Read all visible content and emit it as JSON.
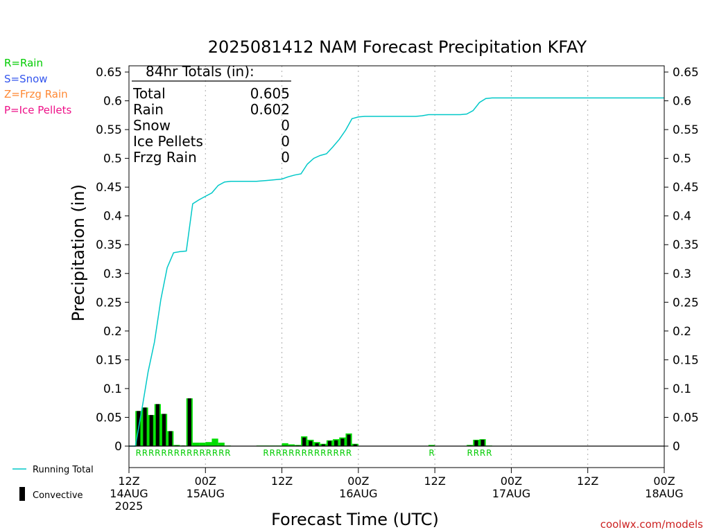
{
  "chart_data": {
    "type": "bar",
    "title": "2025081412 NAM Forecast Precipitation KFAY",
    "xlabel": "Forecast Time (UTC)",
    "ylabel": "Precipitation (in)",
    "ylim": [
      0,
      0.65
    ],
    "yticks": [
      "0",
      "0.05",
      "0.1",
      "0.15",
      "0.2",
      "0.25",
      "0.3",
      "0.35",
      "0.4",
      "0.45",
      "0.5",
      "0.55",
      "0.6",
      "0.65"
    ],
    "xlim_hours": [
      0,
      84
    ],
    "xticks": [
      {
        "hour": 0,
        "line1": "12Z",
        "line2": "14AUG",
        "line3": "2025"
      },
      {
        "hour": 12,
        "line1": "00Z",
        "line2": "15AUG",
        "line3": ""
      },
      {
        "hour": 24,
        "line1": "12Z",
        "line2": "",
        "line3": ""
      },
      {
        "hour": 36,
        "line1": "00Z",
        "line2": "16AUG",
        "line3": ""
      },
      {
        "hour": 48,
        "line1": "12Z",
        "line2": "",
        "line3": ""
      },
      {
        "hour": 60,
        "line1": "00Z",
        "line2": "17AUG",
        "line3": ""
      },
      {
        "hour": 72,
        "line1": "12Z",
        "line2": "",
        "line3": ""
      },
      {
        "hour": 84,
        "line1": "00Z",
        "line2": "18AUG",
        "line3": ""
      }
    ],
    "legend_left": [
      {
        "text": "R=Rain",
        "color": "#00cc00"
      },
      {
        "text": "S=Snow",
        "color": "#3355ee"
      },
      {
        "text": "Z=Frzg Rain",
        "color": "#ff8833"
      },
      {
        "text": "P=Ice Pellets",
        "color": "#ee1188"
      }
    ],
    "legend_bottom": {
      "running_total": "Running Total",
      "convective": "Convective"
    },
    "totals_box": {
      "heading": "84hr Totals (in):",
      "rows": [
        {
          "label": "Total",
          "value": "0.605"
        },
        {
          "label": "Rain",
          "value": "0.602"
        },
        {
          "label": "Snow",
          "value": "0"
        },
        {
          "label": "Ice Pellets",
          "value": "0"
        },
        {
          "label": "Frzg Rain",
          "value": "0"
        }
      ]
    },
    "credit": "coolwx.com/models",
    "colors": {
      "rain_bar": "#00dd00",
      "convective_bar": "#000000",
      "running_total": "#00c8c8",
      "grid": "#aaaaaa",
      "credit": "#cc2222"
    },
    "series": [
      {
        "name": "Running Total",
        "kind": "line",
        "x": [
          0,
          1,
          2,
          3,
          4,
          5,
          6,
          7,
          8,
          9,
          10,
          11,
          12,
          13,
          14,
          15,
          16,
          17,
          18,
          19,
          20,
          21,
          22,
          23,
          24,
          25,
          26,
          27,
          28,
          29,
          30,
          31,
          32,
          33,
          34,
          35,
          36,
          37,
          38,
          39,
          40,
          41,
          42,
          43,
          44,
          45,
          46,
          47,
          48,
          49,
          50,
          51,
          52,
          53,
          54,
          55,
          56,
          57,
          58,
          59,
          60,
          84
        ],
        "y": [
          0,
          0,
          0.062,
          0.129,
          0.181,
          0.255,
          0.31,
          0.336,
          0.338,
          0.339,
          0.421,
          0.428,
          0.434,
          0.44,
          0.453,
          0.459,
          0.46,
          0.46,
          0.46,
          0.46,
          0.46,
          0.461,
          0.462,
          0.463,
          0.464,
          0.468,
          0.471,
          0.473,
          0.49,
          0.5,
          0.505,
          0.508,
          0.52,
          0.533,
          0.549,
          0.569,
          0.572,
          0.573,
          0.573,
          0.573,
          0.573,
          0.573,
          0.573,
          0.573,
          0.573,
          0.573,
          0.574,
          0.576,
          0.576,
          0.576,
          0.576,
          0.576,
          0.576,
          0.577,
          0.583,
          0.597,
          0.604,
          0.605,
          0.605,
          0.605,
          0.605,
          0.605
        ]
      }
    ],
    "bars": [
      {
        "hour": 2,
        "total": 0.061,
        "convective": 0.061
      },
      {
        "hour": 3,
        "total": 0.067,
        "convective": 0.067
      },
      {
        "hour": 4,
        "total": 0.054,
        "convective": 0.054
      },
      {
        "hour": 5,
        "total": 0.073,
        "convective": 0.073
      },
      {
        "hour": 6,
        "total": 0.056,
        "convective": 0.056
      },
      {
        "hour": 7,
        "total": 0.026,
        "convective": 0.026
      },
      {
        "hour": 8,
        "total": 0.002,
        "convective": 0.001
      },
      {
        "hour": 9,
        "total": 0.001,
        "convective": 0.001
      },
      {
        "hour": 10,
        "total": 0.083,
        "convective": 0.083
      },
      {
        "hour": 11,
        "total": 0.006,
        "convective": 0
      },
      {
        "hour": 12,
        "total": 0.006,
        "convective": 0
      },
      {
        "hour": 13,
        "total": 0.007,
        "convective": 0
      },
      {
        "hour": 14,
        "total": 0.013,
        "convective": 0
      },
      {
        "hour": 15,
        "total": 0.006,
        "convective": 0
      },
      {
        "hour": 16,
        "total": 0.001,
        "convective": 0
      },
      {
        "hour": 17,
        "total": 0.0005,
        "convective": 0
      },
      {
        "hour": 18,
        "total": 0.0005,
        "convective": 0
      },
      {
        "hour": 19,
        "total": 0.0005,
        "convective": 0
      },
      {
        "hour": 20,
        "total": 0.0005,
        "convective": 0
      },
      {
        "hour": 21,
        "total": 0.001,
        "convective": 0
      },
      {
        "hour": 22,
        "total": 0.001,
        "convective": 0
      },
      {
        "hour": 23,
        "total": 0.001,
        "convective": 0
      },
      {
        "hour": 24,
        "total": 0.001,
        "convective": 0
      },
      {
        "hour": 25,
        "total": 0.005,
        "convective": 0
      },
      {
        "hour": 26,
        "total": 0.003,
        "convective": 0
      },
      {
        "hour": 27,
        "total": 0.002,
        "convective": 0.001
      },
      {
        "hour": 28,
        "total": 0.017,
        "convective": 0.015
      },
      {
        "hour": 29,
        "total": 0.011,
        "convective": 0.009
      },
      {
        "hour": 30,
        "total": 0.007,
        "convective": 0.005
      },
      {
        "hour": 31,
        "total": 0.004,
        "convective": 0.003
      },
      {
        "hour": 32,
        "total": 0.01,
        "convective": 0.009
      },
      {
        "hour": 33,
        "total": 0.012,
        "convective": 0.01
      },
      {
        "hour": 34,
        "total": 0.015,
        "convective": 0.013
      },
      {
        "hour": 35,
        "total": 0.022,
        "convective": 0.02
      },
      {
        "hour": 36,
        "total": 0.004,
        "convective": 0.003
      },
      {
        "hour": 48,
        "total": 0.002,
        "convective": 0
      },
      {
        "hour": 54,
        "total": 0.002,
        "convective": 0.001
      },
      {
        "hour": 55,
        "total": 0.011,
        "convective": 0.01
      },
      {
        "hour": 56,
        "total": 0.012,
        "convective": 0.011
      },
      {
        "hour": 57,
        "total": 0.001,
        "convective": 0
      }
    ],
    "precip_type_labels": [
      {
        "start_hour": 2,
        "text": "RRRRRRRRRRRRRRR"
      },
      {
        "start_hour": 22,
        "text": "RRRRRRRRRRRRRR"
      },
      {
        "start_hour": 48,
        "text": "R"
      },
      {
        "start_hour": 54,
        "text": "RRRR"
      }
    ]
  }
}
